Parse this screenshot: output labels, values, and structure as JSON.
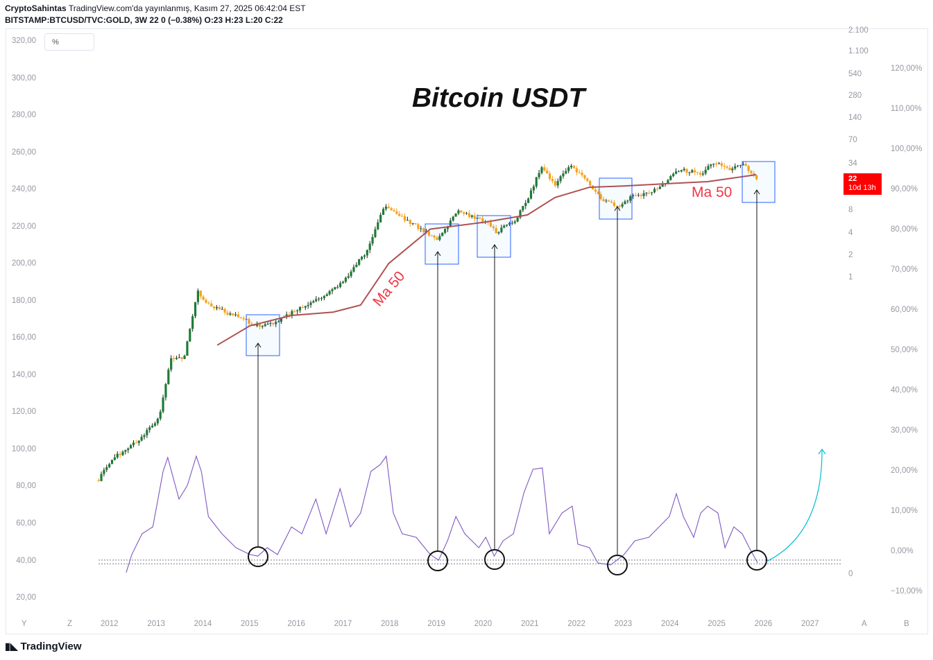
{
  "header": {
    "author": "CryptoSahintas",
    "published": "TradingView.com'da yayınlanmış, Kasım 27, 2025 06:42:04 EST",
    "symbol_line": "BITSTAMP:BTCUSD/TVC:GOLD, 3W  22 0 (−0.38%)  O:23  H:23  L:20  C:22"
  },
  "percent_toggle": "%",
  "footer": {
    "logo": "TradingView"
  },
  "axis_buttons": {
    "left_y": "Y",
    "left_z": "Z",
    "right_a": "A",
    "right_b": "B"
  },
  "chart_data": {
    "type": "candlestick",
    "title": "Bitcoin USDT",
    "annotations": [
      "Ma 50",
      "Ma 50"
    ],
    "last_price": {
      "value": "22",
      "countdown": "10d 13h"
    },
    "color_up": "#1e7b34",
    "color_down": "#f7a21b",
    "ma_color": "#b05050",
    "osc_color": "#7e57c2",
    "annotation_arrow_color": "#00bcd4",
    "x_ticks": [
      "2012",
      "2013",
      "2014",
      "2015",
      "2016",
      "2017",
      "2018",
      "2019",
      "2020",
      "2021",
      "2022",
      "2023",
      "2024",
      "2025",
      "2026",
      "2027"
    ],
    "left_axis_ticks": [
      "320,00",
      "300,00",
      "280,00",
      "260,00",
      "240,00",
      "220,00",
      "200,00",
      "180,00",
      "160,00",
      "140,00",
      "120,00",
      "100,00",
      "80,00",
      "60,00",
      "40,00",
      "20,00"
    ],
    "log_axis_ticks": [
      "2.100",
      "1.100",
      "540",
      "280",
      "140",
      "70",
      "34",
      "8",
      "4",
      "2",
      "1"
    ],
    "log_axis_zero": "0",
    "percent_axis_ticks": [
      "120,00%",
      "110,00%",
      "100,00%",
      "90,00%",
      "80,00%",
      "70,00%",
      "60,00%",
      "50,00%",
      "40,00%",
      "30,00%",
      "20,00%",
      "10,00%",
      "0,00%",
      "−10,00%"
    ],
    "y_scale": "log",
    "price_path": [
      [
        2011.75,
        0.002
      ],
      [
        2012.02,
        0.0037
      ],
      [
        2012.61,
        0.0068
      ],
      [
        2013.06,
        0.014
      ],
      [
        2013.28,
        0.08
      ],
      [
        2013.58,
        0.088
      ],
      [
        2013.87,
        0.67
      ],
      [
        2014.1,
        0.44
      ],
      [
        2014.84,
        0.28
      ],
      [
        2015.16,
        0.23
      ],
      [
        2015.58,
        0.26
      ],
      [
        2016.03,
        0.39
      ],
      [
        2016.62,
        0.6
      ],
      [
        2017.07,
        1.02
      ],
      [
        2017.51,
        2.4
      ],
      [
        2017.88,
        9.6
      ],
      [
        2018.4,
        5.6
      ],
      [
        2019.0,
        3.3
      ],
      [
        2019.44,
        7.7
      ],
      [
        2020.04,
        5.6
      ],
      [
        2020.26,
        4.1
      ],
      [
        2020.63,
        5.6
      ],
      [
        2020.93,
        10.6
      ],
      [
        2021.22,
        31
      ],
      [
        2021.52,
        18
      ],
      [
        2021.82,
        32
      ],
      [
        2022.19,
        20
      ],
      [
        2022.56,
        10.6
      ],
      [
        2022.86,
        9
      ],
      [
        2023.15,
        11.8
      ],
      [
        2023.75,
        15.6
      ],
      [
        2024.19,
        28
      ],
      [
        2024.64,
        25
      ],
      [
        2024.94,
        35
      ],
      [
        2025.23,
        28
      ],
      [
        2025.53,
        33
      ],
      [
        2025.86,
        21
      ]
    ],
    "ma50": [
      [
        2014.29,
        0.127
      ],
      [
        2014.99,
        0.23
      ],
      [
        2015.88,
        0.316
      ],
      [
        2016.77,
        0.35
      ],
      [
        2017.36,
        0.435
      ],
      [
        2017.96,
        1.56
      ],
      [
        2018.85,
        4.5
      ],
      [
        2020.04,
        5.6
      ],
      [
        2020.93,
        6.96
      ],
      [
        2021.52,
        11.9
      ],
      [
        2022.26,
        16.3
      ],
      [
        2023.0,
        17
      ],
      [
        2023.9,
        18.2
      ],
      [
        2024.79,
        19.4
      ],
      [
        2025.83,
        24
      ]
    ],
    "oscillator": [
      [
        2012.34,
        33.9
      ],
      [
        2012.46,
        43.6
      ],
      [
        2012.68,
        54.8
      ],
      [
        2012.91,
        58.5
      ],
      [
        2013.13,
        88.4
      ],
      [
        2013.23,
        95.9
      ],
      [
        2013.47,
        73.5
      ],
      [
        2013.65,
        80.9
      ],
      [
        2013.84,
        96.6
      ],
      [
        2013.95,
        88.4
      ],
      [
        2014.1,
        64.1
      ],
      [
        2014.39,
        54.8
      ],
      [
        2014.69,
        47.3
      ],
      [
        2014.99,
        43.6
      ],
      [
        2015.16,
        42.8
      ],
      [
        2015.36,
        47.3
      ],
      [
        2015.58,
        43.6
      ],
      [
        2015.88,
        58.5
      ],
      [
        2016.1,
        54.8
      ],
      [
        2016.4,
        73.5
      ],
      [
        2016.62,
        54.8
      ],
      [
        2016.92,
        79.1
      ],
      [
        2017.14,
        58.5
      ],
      [
        2017.36,
        66
      ],
      [
        2017.58,
        88.4
      ],
      [
        2017.78,
        92.1
      ],
      [
        2017.91,
        96.6
      ],
      [
        2018.06,
        66
      ],
      [
        2018.25,
        54.8
      ],
      [
        2018.55,
        52.9
      ],
      [
        2018.85,
        43.6
      ],
      [
        2019.03,
        40.6
      ],
      [
        2019.22,
        51
      ],
      [
        2019.4,
        64.1
      ],
      [
        2019.59,
        54.8
      ],
      [
        2019.89,
        47.3
      ],
      [
        2020.04,
        52.9
      ],
      [
        2020.22,
        42.8
      ],
      [
        2020.41,
        51
      ],
      [
        2020.63,
        54.8
      ],
      [
        2020.86,
        77.2
      ],
      [
        2021.05,
        89.5
      ],
      [
        2021.25,
        90.3
      ],
      [
        2021.4,
        54.8
      ],
      [
        2021.67,
        66
      ],
      [
        2021.89,
        69.7
      ],
      [
        2022.01,
        49.2
      ],
      [
        2022.26,
        47.3
      ],
      [
        2022.44,
        39.1
      ],
      [
        2022.71,
        38
      ],
      [
        2023.0,
        43.6
      ],
      [
        2023.23,
        51
      ],
      [
        2023.53,
        52.9
      ],
      [
        2023.75,
        58.5
      ],
      [
        2023.97,
        64.1
      ],
      [
        2024.12,
        76.4
      ],
      [
        2024.27,
        64.1
      ],
      [
        2024.49,
        52.9
      ],
      [
        2024.64,
        66
      ],
      [
        2024.79,
        69.7
      ],
      [
        2025.01,
        66
      ],
      [
        2025.16,
        47.3
      ],
      [
        2025.35,
        58.5
      ],
      [
        2025.53,
        54.8
      ],
      [
        2025.68,
        47.3
      ],
      [
        2025.86,
        39.1
      ]
    ],
    "oscillator_levels": [
      41,
      39
    ],
    "highlighted_bottoms": [
      2015.16,
      2019.03,
      2020.22,
      2022.86,
      2025.86
    ]
  }
}
